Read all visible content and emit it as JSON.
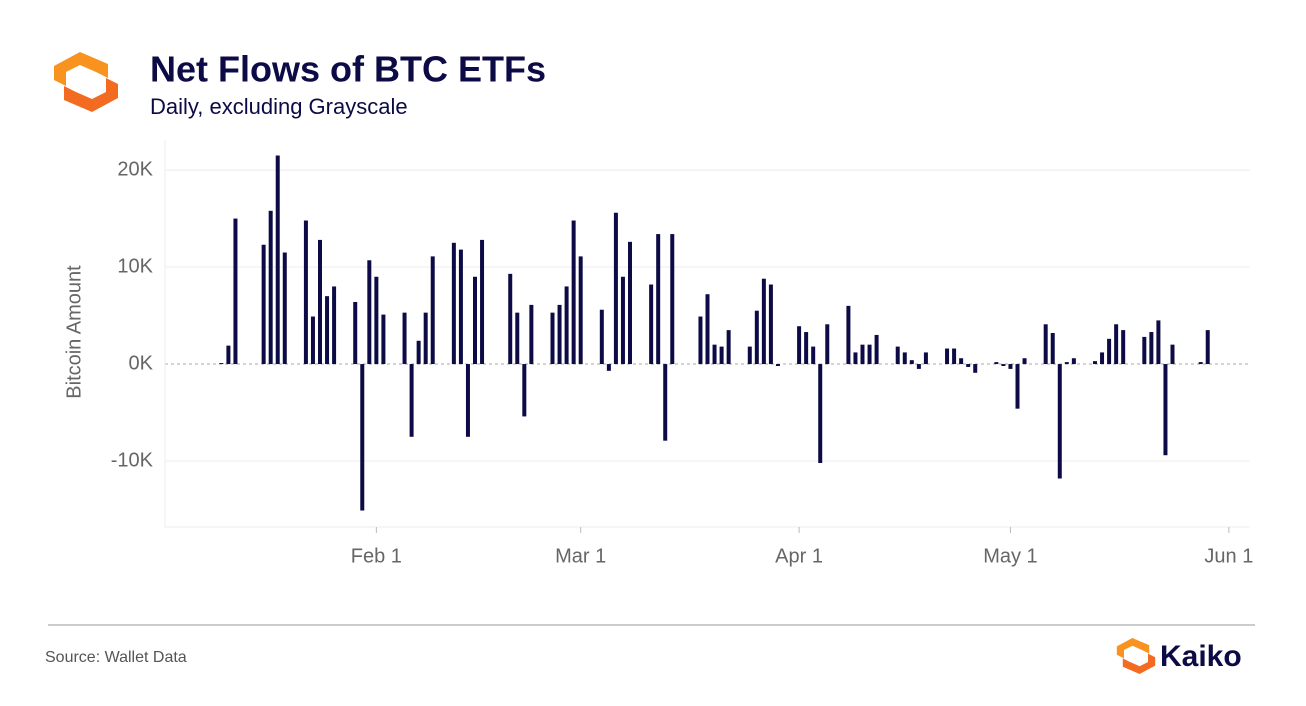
{
  "chart_data": {
    "type": "bar",
    "title": "Net Flows of BTC ETFs",
    "subtitle": "Daily, excluding Grayscale",
    "y_label": "Bitcoin Amount",
    "source": "Source: Wallet Data",
    "brand": "Kaiko",
    "color": "#0c0b45",
    "grid": true,
    "x": [
      "Jan 10",
      "Jan 11",
      "Jan 12",
      "Jan 16",
      "Jan 17",
      "Jan 18",
      "Jan 19",
      "Jan 22",
      "Jan 23",
      "Jan 24",
      "Jan 25",
      "Jan 26",
      "Jan 29",
      "Jan 30",
      "Jan 31",
      "Feb 1",
      "Feb 2",
      "Feb 5",
      "Feb 6",
      "Feb 7",
      "Feb 8",
      "Feb 9",
      "Feb 12",
      "Feb 13",
      "Feb 14",
      "Feb 15",
      "Feb 16",
      "Feb 20",
      "Feb 21",
      "Feb 22",
      "Feb 23",
      "Feb 26",
      "Feb 27",
      "Feb 28",
      "Feb 29",
      "Mar 1",
      "Mar 4",
      "Mar 5",
      "Mar 6",
      "Mar 7",
      "Mar 8",
      "Mar 11",
      "Mar 12",
      "Mar 13",
      "Mar 14",
      "Mar 18",
      "Mar 19",
      "Mar 20",
      "Mar 21",
      "Mar 22",
      "Mar 25",
      "Mar 26",
      "Mar 27",
      "Mar 28",
      "Mar 29",
      "Apr 1",
      "Apr 2",
      "Apr 3",
      "Apr 4",
      "Apr 5",
      "Apr 8",
      "Apr 9",
      "Apr 10",
      "Apr 11",
      "Apr 12",
      "Apr 15",
      "Apr 16",
      "Apr 17",
      "Apr 18",
      "Apr 19",
      "Apr 22",
      "Apr 23",
      "Apr 24",
      "Apr 25",
      "Apr 26",
      "Apr 29",
      "Apr 30",
      "May 1",
      "May 2",
      "May 3",
      "May 6",
      "May 7",
      "May 8",
      "May 9",
      "May 10",
      "May 13",
      "May 14",
      "May 15",
      "May 16",
      "May 17",
      "May 20",
      "May 21",
      "May 22",
      "May 23",
      "May 24",
      "May 28",
      "May 29"
    ],
    "values": [
      100,
      1900,
      15000,
      12300,
      15800,
      21500,
      11500,
      14800,
      4900,
      12800,
      7000,
      8000,
      6400,
      -15100,
      10700,
      9000,
      5100,
      5300,
      -7500,
      2400,
      5300,
      11100,
      12500,
      11800,
      -7500,
      9000,
      12800,
      9300,
      5300,
      -5400,
      6100,
      5300,
      6100,
      8000,
      14800,
      11100,
      5600,
      -700,
      15600,
      9000,
      12600,
      8200,
      13400,
      -7900,
      13400,
      4900,
      7200,
      2000,
      1800,
      3500,
      1800,
      5500,
      8800,
      8200,
      -200,
      3900,
      3300,
      1800,
      -10200,
      4100,
      6000,
      1200,
      2000,
      2000,
      3000,
      1800,
      1200,
      400,
      -500,
      1200,
      1600,
      1600,
      600,
      -300,
      -900,
      200,
      -200,
      -500,
      -4600,
      600,
      4100,
      3200,
      -11800,
      200,
      600,
      300,
      1200,
      2600,
      4100,
      3500,
      2800,
      3300,
      4500,
      -9400,
      2000,
      200,
      3500
    ],
    "xlim": [
      "Jan 2",
      "Jun 4"
    ],
    "xticks": [
      "Feb 1",
      "Mar 1",
      "Apr 1",
      "May 1",
      "Jun 1"
    ],
    "ylim": [
      -16800,
      23100
    ],
    "yticks": [
      {
        "value": -10000,
        "label": "-10K"
      },
      {
        "value": 0,
        "label": "0K"
      },
      {
        "value": 10000,
        "label": "10K"
      },
      {
        "value": 20000,
        "label": "20K"
      }
    ]
  }
}
